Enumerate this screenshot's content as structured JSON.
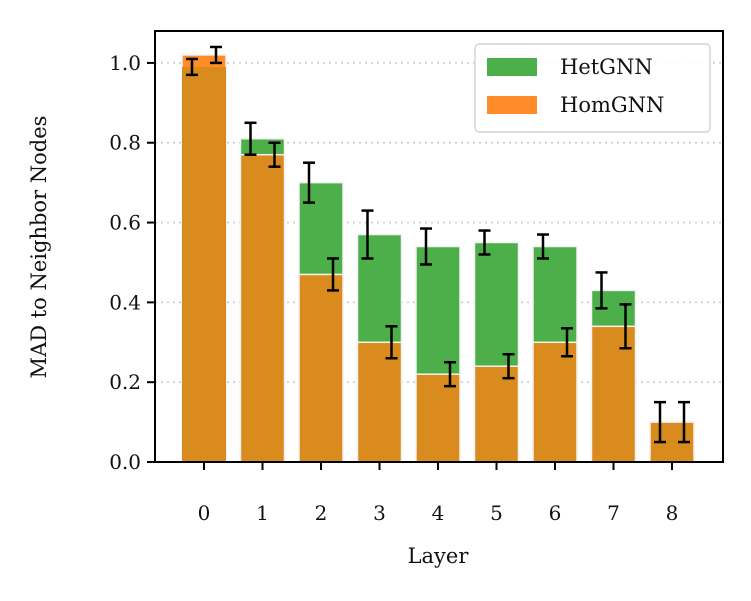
{
  "chart_data": {
    "type": "bar",
    "title": "",
    "xlabel": "Layer",
    "ylabel": "MAD to Neighbor Nodes",
    "categories": [
      "0",
      "1",
      "2",
      "3",
      "4",
      "5",
      "6",
      "7",
      "8"
    ],
    "ylim": [
      0,
      1.08
    ],
    "yticks": [
      "0.0",
      "0.2",
      "0.4",
      "0.6",
      "0.8",
      "1.0"
    ],
    "grid": "horizontal dotted",
    "legend_position": "top-right",
    "series": [
      {
        "name": "HetGNN",
        "color": "#4daf4a",
        "values": [
          0.99,
          0.81,
          0.7,
          0.57,
          0.54,
          0.55,
          0.54,
          0.43,
          0.1
        ],
        "errors": [
          0.02,
          0.04,
          0.05,
          0.06,
          0.045,
          0.03,
          0.03,
          0.045,
          0.05
        ]
      },
      {
        "name": "HomGNN",
        "color": "#ff8c28",
        "values": [
          1.02,
          0.77,
          0.47,
          0.3,
          0.22,
          0.24,
          0.3,
          0.34,
          0.1
        ],
        "errors": [
          0.02,
          0.03,
          0.04,
          0.04,
          0.03,
          0.03,
          0.035,
          0.055,
          0.05
        ]
      }
    ],
    "overlap_color": "#d98b1e"
  }
}
